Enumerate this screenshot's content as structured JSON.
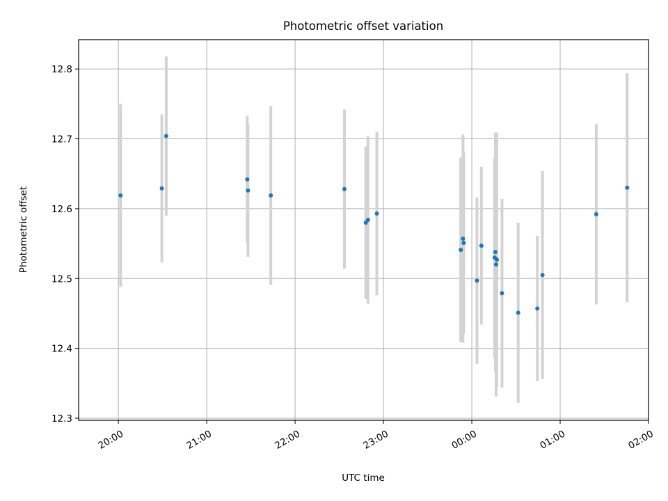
{
  "chart_data": {
    "type": "scatter",
    "title": "Photometric offset variation",
    "xlabel": "UTC time",
    "ylabel": "Photometric offset",
    "x_ticks": [
      "20:00",
      "21:00",
      "22:00",
      "23:00",
      "00:00",
      "01:00",
      "02:00"
    ],
    "y_ticks": [
      "12.3",
      "12.4",
      "12.5",
      "12.6",
      "12.7",
      "12.8"
    ],
    "xlim_minutes": [
      -27,
      360
    ],
    "x_ticks_minutes": [
      0,
      60,
      120,
      180,
      240,
      300,
      360
    ],
    "ylim": [
      12.297,
      12.842
    ],
    "y_tick_values": [
      12.3,
      12.4,
      12.5,
      12.6,
      12.7,
      12.8
    ],
    "grid": true,
    "marker_color": "#1f77b4",
    "errorbar_color": "#d3d3d3",
    "points": [
      {
        "t": 1.5,
        "y": 12.619,
        "err": 0.131
      },
      {
        "t": 29.5,
        "y": 12.629,
        "err": 0.106
      },
      {
        "t": 32.5,
        "y": 12.704,
        "err": 0.114
      },
      {
        "t": 87.5,
        "y": 12.642,
        "err": 0.091
      },
      {
        "t": 88.0,
        "y": 12.626,
        "err": 0.095
      },
      {
        "t": 103.5,
        "y": 12.619,
        "err": 0.128
      },
      {
        "t": 153.5,
        "y": 12.628,
        "err": 0.114
      },
      {
        "t": 168.0,
        "y": 12.58,
        "err": 0.109
      },
      {
        "t": 169.5,
        "y": 12.584,
        "err": 0.12
      },
      {
        "t": 175.5,
        "y": 12.593,
        "err": 0.117
      },
      {
        "t": 232.5,
        "y": 12.541,
        "err": 0.132
      },
      {
        "t": 234.0,
        "y": 12.557,
        "err": 0.149
      },
      {
        "t": 234.5,
        "y": 12.551,
        "err": 0.13
      },
      {
        "t": 243.5,
        "y": 12.497,
        "err": 0.119
      },
      {
        "t": 246.5,
        "y": 12.547,
        "err": 0.113
      },
      {
        "t": 255.5,
        "y": 12.53,
        "err": 0.143
      },
      {
        "t": 256.0,
        "y": 12.538,
        "err": 0.171
      },
      {
        "t": 256.5,
        "y": 12.52,
        "err": 0.189
      },
      {
        "t": 257.0,
        "y": 12.527,
        "err": 0.182
      },
      {
        "t": 260.5,
        "y": 12.479,
        "err": 0.135
      },
      {
        "t": 271.5,
        "y": 12.451,
        "err": 0.129
      },
      {
        "t": 284.5,
        "y": 12.457,
        "err": 0.104
      },
      {
        "t": 288.0,
        "y": 12.505,
        "err": 0.149
      },
      {
        "t": 324.5,
        "y": 12.592,
        "err": 0.129
      },
      {
        "t": 345.5,
        "y": 12.63,
        "err": 0.164
      }
    ]
  }
}
